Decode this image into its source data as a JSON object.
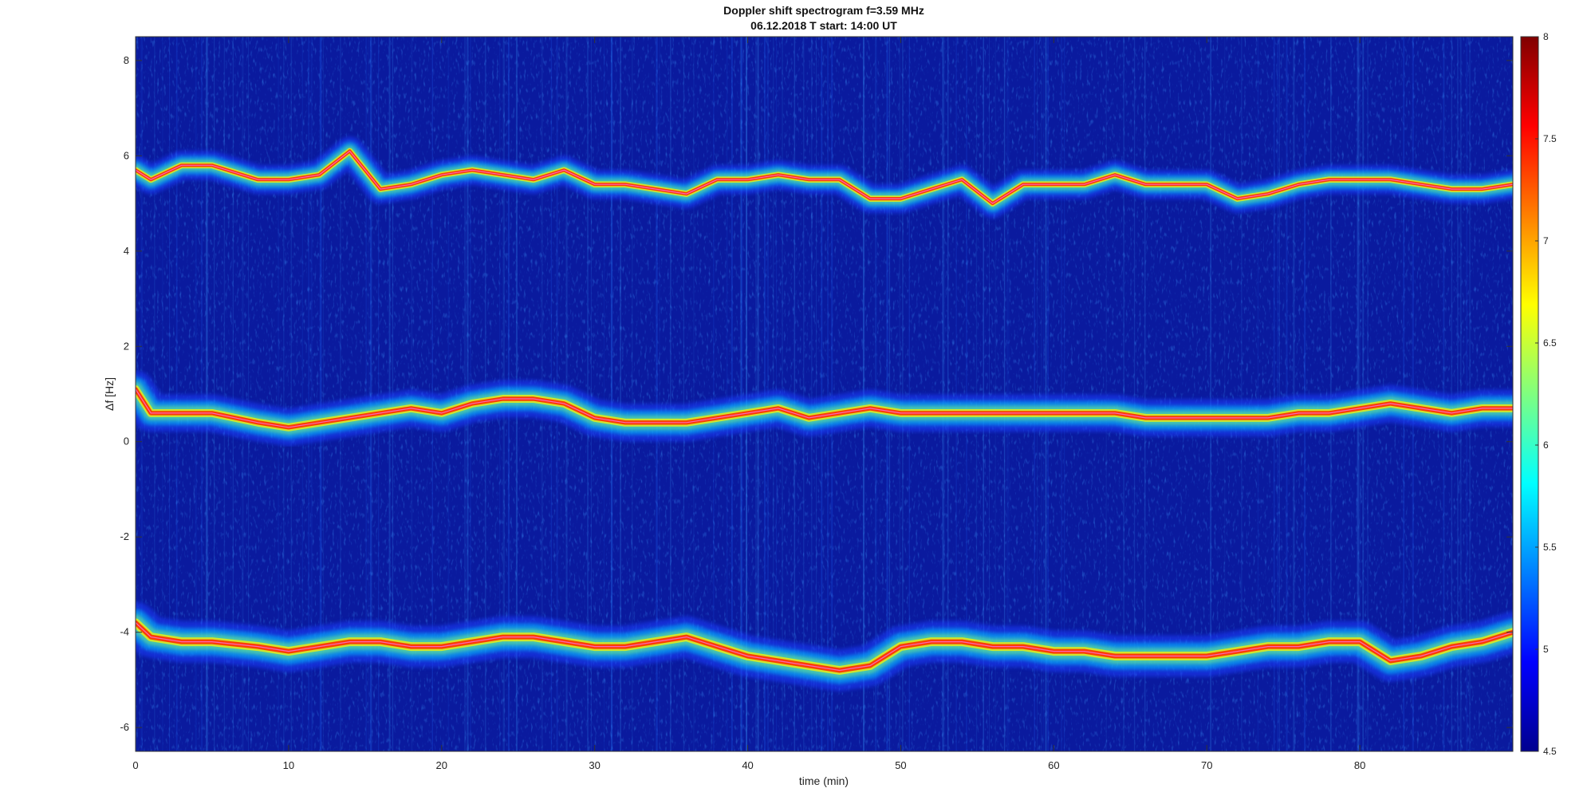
{
  "chart_data": {
    "type": "heatmap",
    "title": "Doppler shift spectrogram f=3.59 MHz",
    "subtitle": "06.12.2018   T start: 14:00 UT",
    "xlabel": "time (min)",
    "ylabel": "Δf [Hz]",
    "xlim": [
      0,
      90
    ],
    "ylim": [
      -6.5,
      8.5
    ],
    "xticks": [
      0,
      10,
      20,
      30,
      40,
      50,
      60,
      70,
      80
    ],
    "yticks": [
      -6,
      -4,
      -2,
      0,
      2,
      4,
      6,
      8
    ],
    "colormap": "jet",
    "colorbar": {
      "range": [
        4.5,
        8
      ],
      "ticks": [
        4.5,
        5,
        5.5,
        6,
        6.5,
        7,
        7.5,
        8
      ],
      "tick_labels": [
        "4.5",
        "5",
        "5.5",
        "6",
        "6.5",
        "7",
        "7.5",
        "8"
      ]
    },
    "background_color": "#0a1a9e",
    "series": [
      {
        "x": [
          0,
          1,
          3,
          5,
          8,
          10,
          12,
          14,
          16,
          18,
          20,
          22,
          24,
          26,
          28,
          30,
          32,
          34,
          36,
          38,
          40,
          42,
          44,
          46,
          48,
          50,
          52,
          54,
          56,
          58,
          60,
          62,
          64,
          66,
          68,
          70,
          72,
          74,
          76,
          78,
          80,
          82,
          84,
          86,
          88,
          90
        ],
        "y": [
          5.7,
          5.5,
          5.8,
          5.8,
          5.5,
          5.5,
          5.6,
          6.1,
          5.3,
          5.4,
          5.6,
          5.7,
          5.6,
          5.5,
          5.7,
          5.4,
          5.4,
          5.3,
          5.2,
          5.5,
          5.5,
          5.6,
          5.5,
          5.5,
          5.1,
          5.1,
          5.3,
          5.5,
          5.0,
          5.4,
          5.4,
          5.4,
          5.6,
          5.4,
          5.4,
          5.4,
          5.1,
          5.2,
          5.4,
          5.5,
          5.5,
          5.5,
          5.4,
          5.3,
          5.3,
          5.4
        ]
      },
      {
        "x": [
          0,
          1,
          3,
          5,
          8,
          10,
          12,
          14,
          16,
          18,
          20,
          22,
          24,
          26,
          28,
          30,
          32,
          34,
          36,
          38,
          40,
          42,
          44,
          46,
          48,
          50,
          52,
          54,
          56,
          58,
          60,
          62,
          64,
          66,
          68,
          70,
          72,
          74,
          76,
          78,
          80,
          82,
          84,
          86,
          88,
          90
        ],
        "y": [
          1.1,
          0.6,
          0.6,
          0.6,
          0.4,
          0.3,
          0.4,
          0.5,
          0.6,
          0.7,
          0.6,
          0.8,
          0.9,
          0.9,
          0.8,
          0.5,
          0.4,
          0.4,
          0.4,
          0.5,
          0.6,
          0.7,
          0.5,
          0.6,
          0.7,
          0.6,
          0.6,
          0.6,
          0.6,
          0.6,
          0.6,
          0.6,
          0.6,
          0.5,
          0.5,
          0.5,
          0.5,
          0.5,
          0.6,
          0.6,
          0.7,
          0.8,
          0.7,
          0.6,
          0.7,
          0.7
        ]
      },
      {
        "x": [
          0,
          1,
          3,
          5,
          8,
          10,
          12,
          14,
          16,
          18,
          20,
          22,
          24,
          26,
          28,
          30,
          32,
          34,
          36,
          38,
          40,
          42,
          44,
          46,
          48,
          50,
          52,
          54,
          56,
          58,
          60,
          62,
          64,
          66,
          68,
          70,
          72,
          74,
          76,
          78,
          80,
          82,
          84,
          86,
          88,
          90
        ],
        "y": [
          -3.8,
          -4.1,
          -4.2,
          -4.2,
          -4.3,
          -4.4,
          -4.3,
          -4.2,
          -4.2,
          -4.3,
          -4.3,
          -4.2,
          -4.1,
          -4.1,
          -4.2,
          -4.3,
          -4.3,
          -4.2,
          -4.1,
          -4.3,
          -4.5,
          -4.6,
          -4.7,
          -4.8,
          -4.7,
          -4.3,
          -4.2,
          -4.2,
          -4.3,
          -4.3,
          -4.4,
          -4.4,
          -4.5,
          -4.5,
          -4.5,
          -4.5,
          -4.4,
          -4.3,
          -4.3,
          -4.2,
          -4.2,
          -4.6,
          -4.5,
          -4.3,
          -4.2,
          -4.0
        ]
      }
    ]
  }
}
